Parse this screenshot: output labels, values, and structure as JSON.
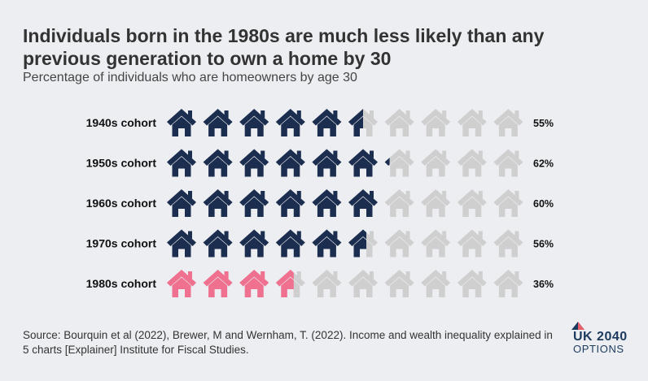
{
  "title": "Individuals born in the 1980s are much less likely than any previous generation to own a home by 30",
  "subtitle": "Percentage of individuals who are homeowners by age 30",
  "source": "Source: Bourquin et al (2022), Brewer, M and Wernham, T. (2022). Income and wealth inequality explained in 5 charts [Explainer] Institute for Fiscal Studies.",
  "logo": {
    "line1": "UK 2040",
    "line2": "OPTIONS"
  },
  "chart_data": {
    "type": "pictogram",
    "icon": "house-icon",
    "icons_per_row": 10,
    "unit_per_icon": 10,
    "categories": [
      "1940s cohort",
      "1950s cohort",
      "1960s cohort",
      "1970s cohort",
      "1980s cohort"
    ],
    "values": [
      55,
      62,
      60,
      56,
      36
    ],
    "value_labels": [
      "55%",
      "62%",
      "60%",
      "56%",
      "36%"
    ],
    "colors": {
      "filled": "#1c2e4f",
      "highlight": "#f07090",
      "empty": "#cfcfcf"
    },
    "highlight_category": "1980s cohort"
  }
}
